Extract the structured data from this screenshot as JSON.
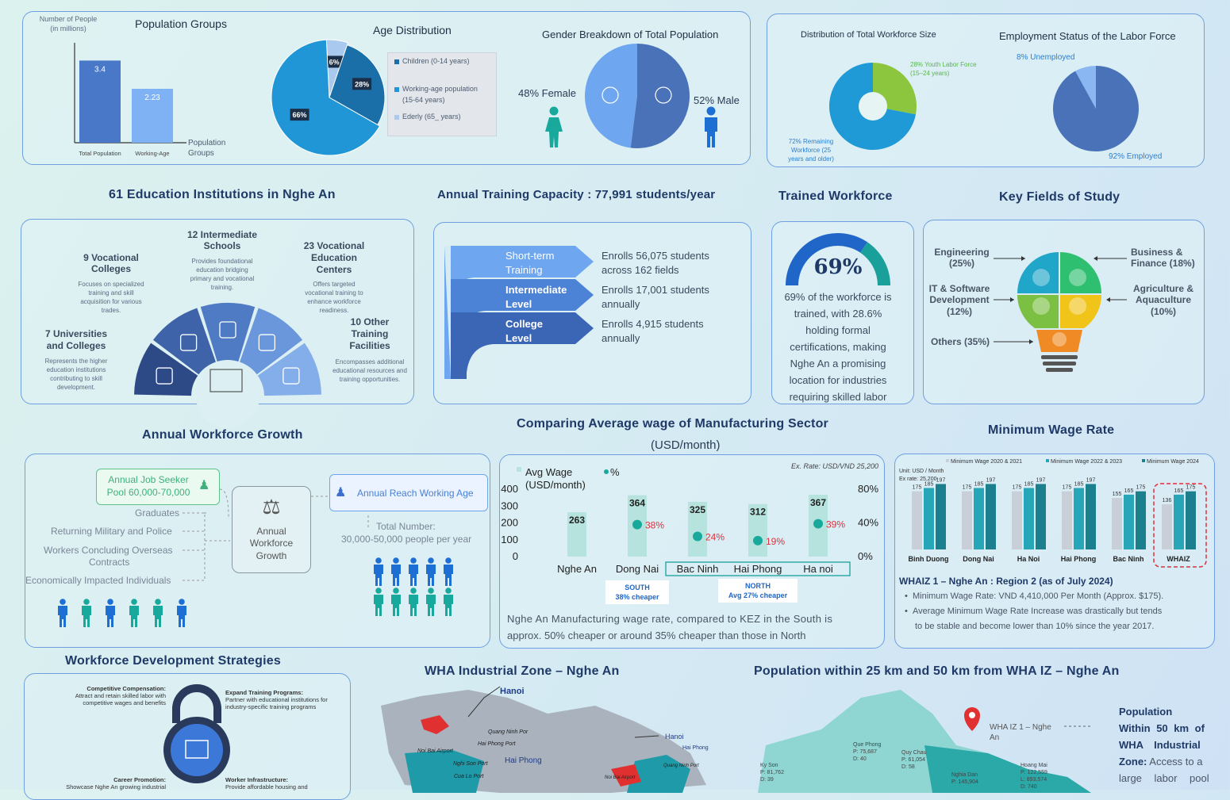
{
  "pop_groups": {
    "ylabel_1": "Number of People",
    "ylabel_2": "(in millions)",
    "title": "Population Groups",
    "xlabel_1": "Population",
    "xlabel_2": "Groups",
    "categories": [
      "Total Population",
      "Working-Age"
    ],
    "values": [
      3.4,
      2.23
    ],
    "value_labels": [
      "3.4",
      "2.23"
    ]
  },
  "age_dist": {
    "title": "Age Distribution",
    "slices": [
      {
        "label": "Children (0-14 years)",
        "value": 28,
        "text": "28%",
        "color": "#1b6fa8"
      },
      {
        "label": "Working-age population (15-64 years)",
        "value": 66,
        "text": "66%",
        "color": "#2196d6"
      },
      {
        "label": "Ederly (65_ years)",
        "value": 6,
        "text": "6%",
        "color": "#a9c9ee"
      }
    ],
    "legend_1": "Children (0-14 years)",
    "legend_2a": "Working-age population",
    "legend_2b": "(15-64 years)",
    "legend_3": "Ederly (65_ years)"
  },
  "gender": {
    "title": "Gender Breakdown of Total Population",
    "female": "48% Female",
    "male": "52% Male",
    "female_value": 48,
    "male_value": 52
  },
  "workforce_size": {
    "title": "Distribution of Total Workforce Size",
    "youth_1": "28% Youth Labor Force",
    "youth_2": "(15–24 years)",
    "rem_1": "72% Remaining",
    "rem_2": "Workforce (25",
    "rem_3": "years and older)",
    "youth_value": 28,
    "rem_value": 72
  },
  "employment": {
    "title": "Employment Status of the Labor Force",
    "unemployed": "8% Unemployed",
    "employed": "92% Employed",
    "unemployed_value": 8,
    "employed_value": 92
  },
  "headings": {
    "education": "61 Education Institutions in Nghe An",
    "training": "Annual Training Capacity : 77,991 students/year",
    "trained": "Trained Workforce",
    "fields": "Key Fields of Study",
    "growth": "Annual Workforce Growth",
    "wage_1": "Comparing Average wage of Manufacturing Sector",
    "wage_2": "(USD/month)",
    "minwage": "Minimum Wage Rate",
    "strategies": "Workforce Development Strategies",
    "wha": "WHA Industrial Zone – Nghe An",
    "population": "Population within 25 km and 50 km from WHA IZ – Nghe An"
  },
  "education": {
    "intermediate_t1": "12 Intermediate",
    "intermediate_t2": "Schools",
    "intermediate_d": [
      "Provides foundational",
      "education bridging",
      "primary and vocational",
      "training."
    ],
    "vocc_t1": "9 Vocational",
    "vocc_t2": "Colleges",
    "vocc_d": [
      "Focuses on specialized",
      "training and skill",
      "acquisition for various",
      "trades."
    ],
    "vcenters_t1": "23 Vocational",
    "vcenters_t2": "Education",
    "vcenters_t3": "Centers",
    "vcenters_d": [
      "Offers targeted",
      "vocational training to",
      "enhance workforce",
      "readiness."
    ],
    "univ_t1": "7 Universities",
    "univ_t2": "and Colleges",
    "univ_d": [
      "Represents the higher",
      "education institutions",
      "contributing to skill",
      "development."
    ],
    "other_t1": "10 Other",
    "other_t2": "Training",
    "other_t3": "Facilities",
    "other_d": [
      "Encompasses additional",
      "educational resources and",
      "training opportunities."
    ]
  },
  "training": {
    "rows": [
      {
        "l1": "Short-term",
        "l2": "Training",
        "d1": "Enrolls 56,075 students",
        "d2": "across 162 fields"
      },
      {
        "l1": "Intermediate",
        "l2": "Level",
        "d1": "Enrolls 17,001 students",
        "d2": "annually"
      },
      {
        "l1": "College",
        "l2": "Level",
        "d1": "Enrolls 4,915 students",
        "d2": "annually"
      }
    ]
  },
  "trained": {
    "value": 69,
    "pct": "69%",
    "lines": [
      "69% of the workforce is",
      "trained, with 28.6%",
      "holding formal",
      "certifications, making",
      "Nghe An a promising",
      "location for industries",
      "requiring skilled labor"
    ]
  },
  "fields": {
    "eng_1": "Engineering",
    "eng_2": "(25%)",
    "it_1": "IT & Software",
    "it_2": "Development",
    "it_3": "(12%)",
    "others": "Others (35%)",
    "biz_1": "Business &",
    "biz_2": "Finance (18%)",
    "agri_1": "Agriculture &",
    "agri_2": "Aquaculture",
    "agri_3": "(10%)"
  },
  "growth": {
    "pool_1": "Annual Job Seeker",
    "pool_2": "Pool 60,000-70,000",
    "sources": [
      "Graduates",
      "Returning Military and Police",
      "Workers Concluding Overseas",
      "Contracts",
      "Economically Impacted Individuals"
    ],
    "center_1": "Annual",
    "center_2": "Workforce",
    "center_3": "Growth",
    "reach": "Annual Reach Working Age",
    "total_1": "Total Number:",
    "total_2": "30,000-50,000 people per year"
  },
  "chart_data": [
    {
      "type": "bar",
      "title": "Comparing Average wage of Manufacturing Sector",
      "subtitle": "(USD/month)",
      "categories": [
        "Nghe An",
        "Dong Nai",
        "Bac Ninh",
        "Hai Phong",
        "Ha noi"
      ],
      "series": [
        {
          "name": "Avg Wage (USD/month)",
          "values": [
            263,
            364,
            325,
            312,
            367
          ]
        },
        {
          "name": "%",
          "values": [
            null,
            38,
            24,
            19,
            39
          ]
        }
      ],
      "pct_labels": [
        "",
        "38%",
        "24%",
        "19%",
        "39%"
      ],
      "ylim": [
        0,
        400
      ],
      "y2lim": [
        0,
        80
      ],
      "yticks": [
        "400",
        "300",
        "200",
        "100",
        "0"
      ],
      "y2ticks": [
        "80%",
        "40%",
        "0%"
      ],
      "note": "Ex. Rate: USD/VND 25,200",
      "legend_1": "Avg Wage",
      "legend_1b": "(USD/month)",
      "legend_2": "%",
      "south_1": "SOUTH",
      "south_2": "38% cheaper",
      "north_1": "NORTH",
      "north_2": "Avg 27% cheaper",
      "caption_1": "Nghe An Manufacturing wage rate, compared to KEZ in the South is",
      "caption_2": "approx. 50% cheaper or around 35% cheaper than those in North"
    },
    {
      "type": "bar",
      "title": "Minimum Wage Rate",
      "unit_1": "Unit: USD / Month",
      "unit_2": "Ex rate: 25,200",
      "categories": [
        "Binh Duong",
        "Dong Nai",
        "Ha Noi",
        "Hai Phong",
        "Bac Ninh",
        "WHAIZ"
      ],
      "series": [
        {
          "name": "Minimum Wage 2020 & 2021",
          "values": [
            175,
            175,
            175,
            175,
            155,
            136
          ]
        },
        {
          "name": "Minimum Wage 2022 & 2023",
          "values": [
            185,
            185,
            185,
            185,
            165,
            165
          ]
        },
        {
          "name": "Minimum Wage 2024",
          "values": [
            197,
            197,
            197,
            197,
            175,
            175
          ]
        }
      ],
      "colors": [
        "#c9cfd6",
        "#26a6b6",
        "#1b7f8e"
      ],
      "ylim": [
        0,
        210
      ]
    }
  ],
  "minwage_text": {
    "head": "WHAIZ 1 – Nghe An : Region 2 (as of July 2024)",
    "b1": "Minimum Wage Rate: VND 4,410,000 Per Month (Approx. $175).",
    "b2a": "Average Minimum Wage Rate Increase was drastically but tends",
    "b2b": "to be stable and become lower than 10% since the year 2017."
  },
  "strategies": {
    "comp_1": "Competitive Compensation:",
    "comp_2": "Attract and retain skilled labor with",
    "comp_3": "competitive wages and benefits",
    "exp_1": "Expand Training Programs:",
    "exp_2": "Partner with educational institutions for",
    "exp_3": "industry-specific training programs",
    "career_1": "Career Promotion:",
    "career_2": "Showcase Nghe An growing industrial",
    "infra_1": "Worker Infrastructure:",
    "infra_2": "Provide affordable housing and"
  },
  "map1": {
    "hanoi": "Hanoi",
    "hanoi2": "Hanoi",
    "qnp": "Quang Ninh Por",
    "hpp": "Hai Phong Port",
    "nba": "Noi Bai Airport",
    "nsp": "Nghi Son Port",
    "hp": "Hai Phong",
    "clp": "Cua Lo Port",
    "hp2": "Hai Phong",
    "qnp2": "Quang Ninh Port",
    "nba2": "Noi Bai Airport"
  },
  "map2": {
    "marker_1": "WHA IZ 1 – Nghe",
    "marker_2": "An",
    "ks_1": "Ky Son",
    "ks_2": "P: 81,762",
    "ks_3": "D: 39",
    "qp_1": "Que Phong",
    "qp_2": "P: 75,687",
    "qp_3": "D: 40",
    "qc_1": "Quy Chau",
    "qc_2": "P: 61,054",
    "qc_3": "D: 58",
    "nd_1": "Nghia Dan",
    "nd_2": "P: 145,904",
    "hm_1": "Hoang Mai",
    "hm_2": "P: 122,559",
    "hm_3": "L: 893,574",
    "hm_4": "D: 740",
    "side_1": "Population",
    "side_2": "Within 50 km of",
    "side_3": "WHA Industrial",
    "side_4a": "Zone:",
    "side_4b": " Access to a",
    "side_5": "large labor pool"
  }
}
